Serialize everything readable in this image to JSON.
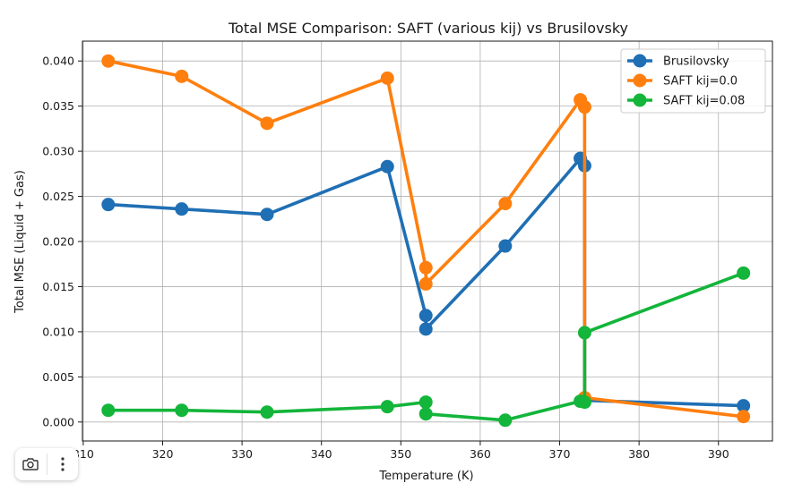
{
  "chart_data": {
    "type": "line",
    "title": "Total MSE Comparison: SAFT (various kij) vs Brusilovsky",
    "xlabel": "Temperature (K)",
    "ylabel": "Total MSE (Liquid + Gas)",
    "xlim": [
      309.9,
      396.8
    ],
    "ylim": [
      -0.0021,
      0.0422
    ],
    "xticks": [
      310,
      320,
      330,
      340,
      350,
      360,
      370,
      380,
      390
    ],
    "yticks": [
      0.0,
      0.005,
      0.01,
      0.015,
      0.02,
      0.025,
      0.03,
      0.035,
      0.04
    ],
    "xtick_labels": [
      "310",
      "320",
      "330",
      "340",
      "350",
      "360",
      "370",
      "380",
      "390"
    ],
    "ytick_labels": [
      "0.000",
      "0.005",
      "0.010",
      "0.015",
      "0.020",
      "0.025",
      "0.030",
      "0.035",
      "0.040"
    ],
    "grid": true,
    "legend_position": "top-right",
    "series": [
      {
        "name": "Brusilovsky",
        "color": "#1f6fb4",
        "x": [
          313.15,
          322.4,
          333.15,
          348.3,
          353.15,
          353.15,
          363.15,
          372.6,
          373.15,
          373.15,
          393.15
        ],
        "y": [
          0.0241,
          0.0236,
          0.023,
          0.0283,
          0.0118,
          0.0103,
          0.0195,
          0.0292,
          0.0284,
          0.0024,
          0.0018
        ]
      },
      {
        "name": "SAFT kij=0.0",
        "color": "#ff7f0e",
        "x": [
          313.15,
          322.4,
          333.15,
          348.3,
          353.15,
          353.15,
          363.15,
          372.6,
          373.15,
          373.15,
          393.15
        ],
        "y": [
          0.04,
          0.0383,
          0.0331,
          0.0381,
          0.0171,
          0.0153,
          0.0242,
          0.0357,
          0.0349,
          0.0027,
          0.0006
        ]
      },
      {
        "name": "SAFT kij=0.08",
        "color": "#13b53a",
        "x": [
          313.15,
          322.4,
          333.15,
          348.3,
          353.15,
          353.15,
          363.15,
          372.6,
          373.15,
          373.15,
          393.15
        ],
        "y": [
          0.0013,
          0.0013,
          0.0011,
          0.0017,
          0.0022,
          0.0009,
          0.0002,
          0.0023,
          0.0022,
          0.0099,
          0.0165
        ]
      }
    ]
  },
  "toolbar": {
    "camera_icon": "camera-icon",
    "menu_icon": "more-vertical-icon"
  }
}
